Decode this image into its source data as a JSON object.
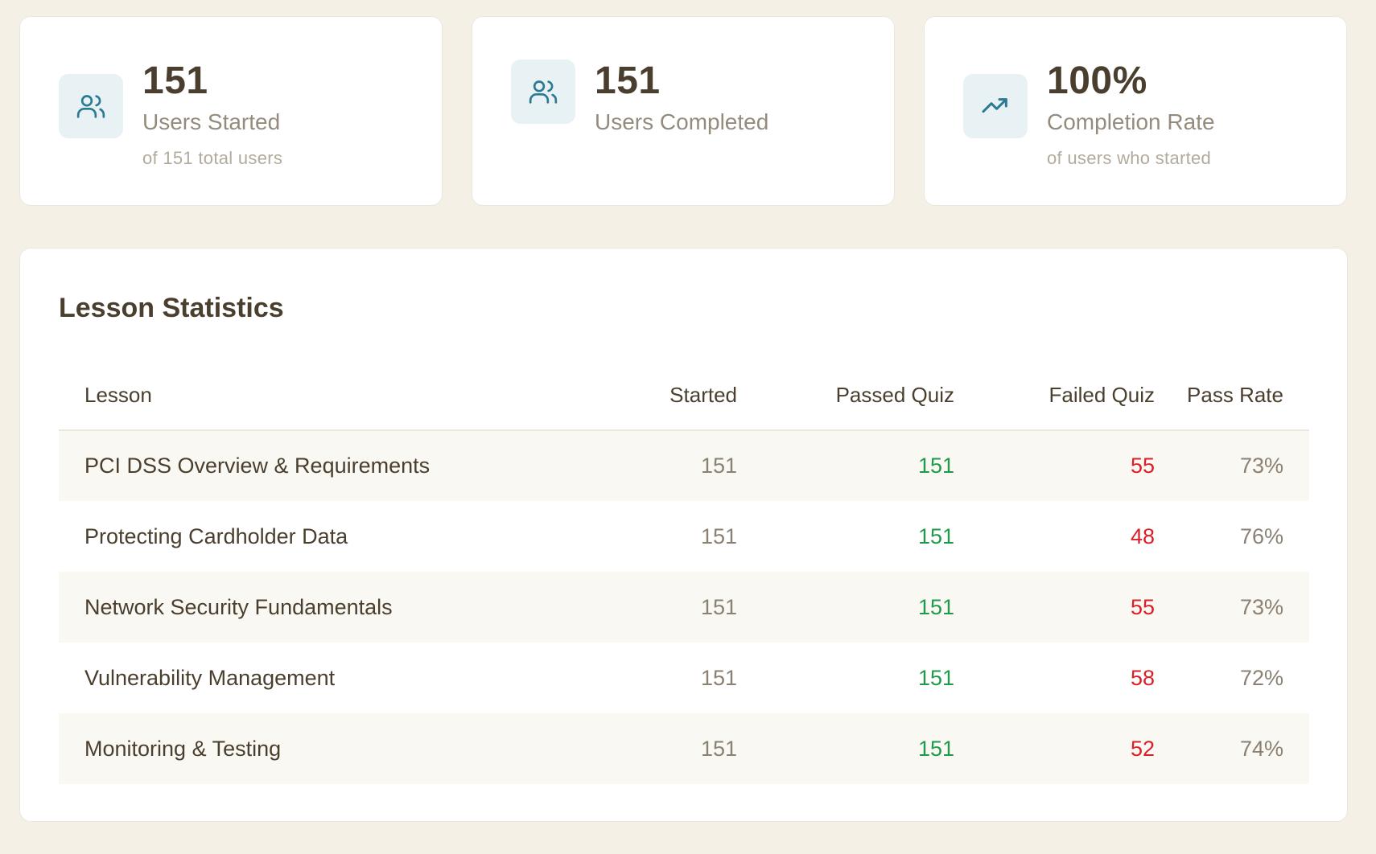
{
  "colors": {
    "background": "#f4f0e6",
    "card": "#ffffff",
    "text_primary": "#4a3f2e",
    "text_muted": "#958b7c",
    "icon_accent": "#2b7a93",
    "icon_bg": "#e8f1f3",
    "pass": "#1e9a4a",
    "fail": "#dc1f26"
  },
  "stats": [
    {
      "icon": "users-icon",
      "value": "151",
      "label": "Users Started",
      "sub": "of 151 total users"
    },
    {
      "icon": "users-icon",
      "value": "151",
      "label": "Users Completed",
      "sub": ""
    },
    {
      "icon": "trending-up-icon",
      "value": "100%",
      "label": "Completion Rate",
      "sub": "of users who started"
    }
  ],
  "lesson_stats": {
    "title": "Lesson Statistics",
    "columns": [
      "Lesson",
      "Started",
      "Passed Quiz",
      "Failed Quiz",
      "Pass Rate"
    ],
    "rows": [
      {
        "lesson": "PCI DSS Overview & Requirements",
        "started": "151",
        "passed": "151",
        "failed": "55",
        "rate": "73%"
      },
      {
        "lesson": "Protecting Cardholder Data",
        "started": "151",
        "passed": "151",
        "failed": "48",
        "rate": "76%"
      },
      {
        "lesson": "Network Security Fundamentals",
        "started": "151",
        "passed": "151",
        "failed": "55",
        "rate": "73%"
      },
      {
        "lesson": "Vulnerability Management",
        "started": "151",
        "passed": "151",
        "failed": "58",
        "rate": "72%"
      },
      {
        "lesson": "Monitoring & Testing",
        "started": "151",
        "passed": "151",
        "failed": "52",
        "rate": "74%"
      }
    ]
  }
}
